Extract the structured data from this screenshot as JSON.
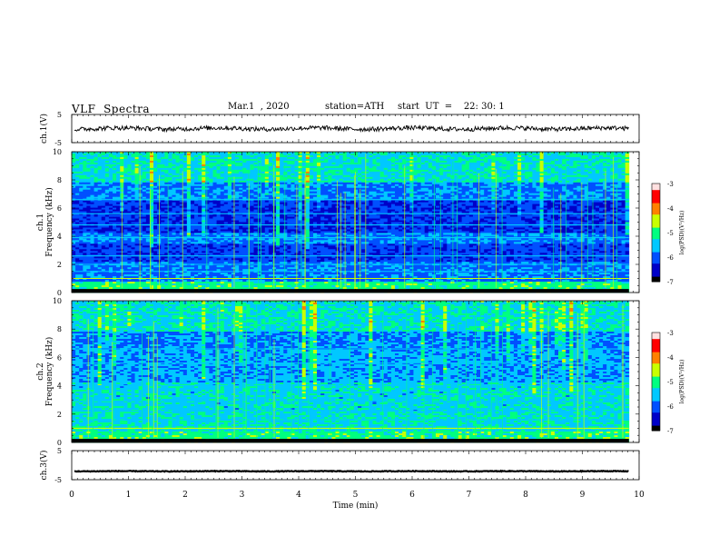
{
  "header": {
    "title": "VLF  Spectra",
    "date": "Mar.1  , 2020",
    "station": "station=ATH",
    "start": "start  UT  =    22: 30: 1"
  },
  "chart_data": [
    {
      "type": "line",
      "panel": "ch1-waveform",
      "ylabel": "ch.1(V)",
      "ylim": [
        -5,
        5
      ],
      "yticks": [
        5,
        -5
      ],
      "xlim": [
        0,
        10
      ],
      "note_series": "noisy waveform oscillating around ~0 V between roughly -1.5 and +1.5 V",
      "series": [
        {
          "values_range": [
            -1.5,
            1.5
          ],
          "mean": 0
        }
      ]
    },
    {
      "type": "heatmap",
      "panel": "ch1-spectrogram",
      "ylabel": "Frequency  (kHz)",
      "channel_label": "ch.1",
      "ylim": [
        0,
        10
      ],
      "yticks": [
        0,
        2,
        4,
        6,
        8,
        10
      ],
      "xlim": [
        0,
        10
      ],
      "colorbar": {
        "label": "log(PSD)(V²/Hz)",
        "range": [
          -7,
          -3
        ],
        "ticks": [
          -3,
          -4,
          -5,
          -6,
          -7
        ]
      }
    },
    {
      "type": "heatmap",
      "panel": "ch2-spectrogram",
      "ylabel": "Frequency  (kHz)",
      "channel_label": "ch.2",
      "ylim": [
        0,
        10
      ],
      "yticks": [
        0,
        2,
        4,
        6,
        8,
        10
      ],
      "xlim": [
        0,
        10
      ],
      "colorbar": {
        "label": "log(PSD)(V²/Hz)",
        "range": [
          -7,
          -3
        ],
        "ticks": [
          -3,
          -4,
          -5,
          -6,
          -7
        ]
      }
    },
    {
      "type": "line",
      "panel": "ch3-waveform",
      "ylabel": "ch.3(V)",
      "ylim": [
        -5,
        5
      ],
      "yticks": [
        5,
        -5
      ],
      "xlim": [
        0,
        10
      ],
      "series": [
        {
          "values_range": [
            -2.3,
            -1.9
          ],
          "mean": -2.1
        }
      ]
    }
  ],
  "xaxis": {
    "label": "Time  (min)",
    "ticks": [
      0,
      1,
      2,
      3,
      4,
      5,
      6,
      7,
      8,
      9,
      10
    ],
    "data_end": 9.82
  },
  "colors": {
    "colormap": [
      "#000000",
      "#0000c8",
      "#0050ff",
      "#00c8ff",
      "#00ff80",
      "#c8ff00",
      "#ff8000",
      "#ff0000",
      "#ffe0e0"
    ]
  }
}
